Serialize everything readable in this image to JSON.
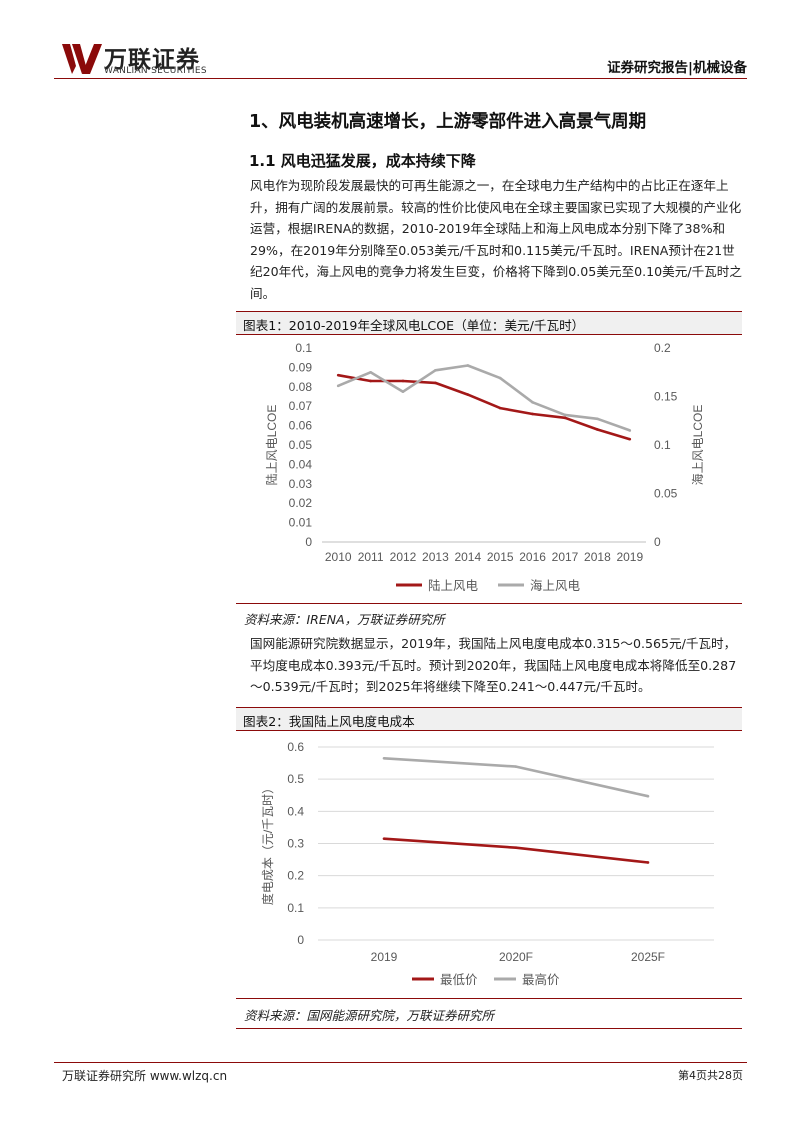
{
  "header": {
    "logo_cn": "万联证券",
    "logo_en": "WANLIAN SECURITIES",
    "report_label": "证券研究报告|机械设备",
    "brand_color": "#8b0a0a"
  },
  "section": {
    "title": "1、风电装机高速增长，上游零部件进入高景气周期",
    "subtitle": "1.1 风电迅猛发展，成本持续下降"
  },
  "paragraphs": [
    "风电作为现阶段发展最快的可再生能源之一，在全球电力生产结构中的占比正在逐年上升，拥有广阔的发展前景。较高的性价比使风电在全球主要国家已实现了大规模的产业化运营，根据IRENA的数据，2010-2019年全球陆上和海上风电成本分别下降了38%和29%，在2019年分别降至0.053美元/千瓦时和0.115美元/千瓦时。IRENA预计在21世纪20年代，海上风电的竞争力将发生巨变，价格将下降到0.05美元至0.10美元/千瓦时之间。",
    "国网能源研究院数据显示，2019年，我国陆上风电度电成本0.315～0.565元/千瓦时，平均度电成本0.393元/千瓦时。预计到2020年，我国陆上风电度电成本将降低至0.287～0.539元/千瓦时；到2025年将继续下降至0.241～0.447元/千瓦时。"
  ],
  "figures": [
    {
      "caption": "图表1：2010-2019年全球风电LCOE（单位：美元/千瓦时）",
      "source": "资料来源：IRENA，万联证券研究所"
    },
    {
      "caption": "图表2：我国陆上风电度电成本",
      "source": "资料来源：国网能源研究院，万联证券研究所"
    }
  ],
  "chart_data": [
    {
      "type": "line",
      "title": "2010-2019年全球风电LCOE（单位：美元/千瓦时）",
      "categories": [
        "2010",
        "2011",
        "2012",
        "2013",
        "2014",
        "2015",
        "2016",
        "2017",
        "2018",
        "2019"
      ],
      "series": [
        {
          "name": "陆上风电",
          "axis": "left",
          "color": "#a31818",
          "values": [
            0.086,
            0.083,
            0.083,
            0.082,
            0.076,
            0.069,
            0.066,
            0.064,
            0.058,
            0.053
          ]
        },
        {
          "name": "海上风电",
          "axis": "right",
          "color": "#aaaaaa",
          "values": [
            0.161,
            0.175,
            0.155,
            0.177,
            0.182,
            0.169,
            0.144,
            0.131,
            0.127,
            0.115
          ]
        }
      ],
      "ylabel": "陆上风电LCOE",
      "ylabel_right": "海上风电LCOE",
      "ylim": [
        0,
        0.1
      ],
      "ylim_right": [
        0,
        0.2
      ],
      "yticks": [
        "0",
        "0.01",
        "0.02",
        "0.03",
        "0.04",
        "0.05",
        "0.06",
        "0.07",
        "0.08",
        "0.09",
        "0.1"
      ],
      "yticks_right": [
        "0",
        "0.05",
        "0.1",
        "0.15",
        "0.2"
      ],
      "legend": "bottom",
      "grid": false
    },
    {
      "type": "line",
      "title": "我国陆上风电度电成本",
      "categories": [
        "2019",
        "2020F",
        "2025F"
      ],
      "series": [
        {
          "name": "最低价",
          "color": "#a31818",
          "values": [
            0.315,
            0.287,
            0.241
          ]
        },
        {
          "name": "最高价",
          "color": "#aaaaaa",
          "values": [
            0.565,
            0.539,
            0.447
          ]
        }
      ],
      "ylabel": "度电成本（元/千瓦时）",
      "ylim": [
        0,
        0.6
      ],
      "yticks": [
        "0",
        "0.1",
        "0.2",
        "0.3",
        "0.4",
        "0.5",
        "0.6"
      ],
      "legend": "bottom",
      "grid": true
    }
  ],
  "footer": {
    "left": "万联证券研究所 www.wlzq.cn",
    "right": "第4页共28页"
  }
}
